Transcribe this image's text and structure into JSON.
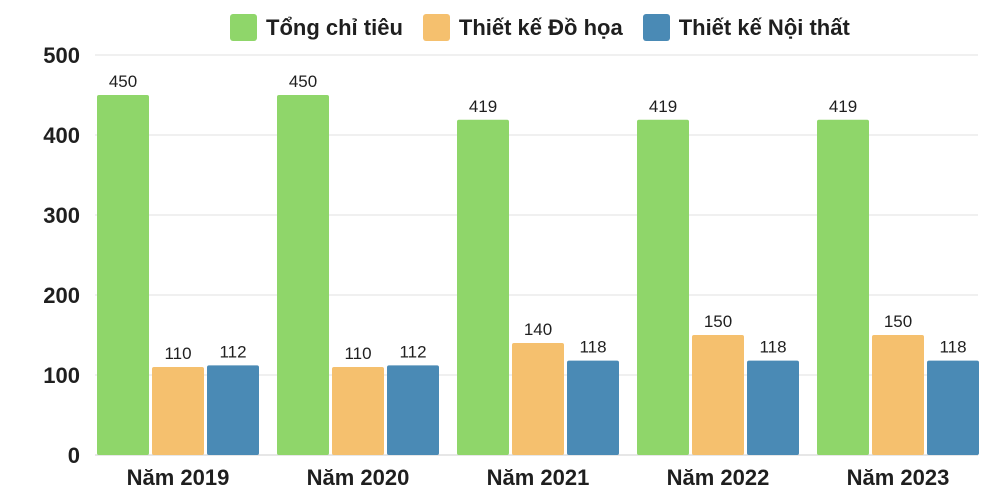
{
  "chart_data": {
    "type": "bar",
    "title": "",
    "xlabel": "",
    "ylabel": "",
    "ylim": [
      0,
      500
    ],
    "yticks": [
      0,
      100,
      200,
      300,
      400,
      500
    ],
    "grid": true,
    "legend_position": "top-center",
    "categories": [
      "Năm 2019",
      "Năm 2020",
      "Năm 2021",
      "Năm 2022",
      "Năm 2023"
    ],
    "series": [
      {
        "name": "Tổng chỉ tiêu",
        "color": "#8fd66a",
        "values": [
          450,
          450,
          419,
          419,
          419
        ]
      },
      {
        "name": "Thiết kế Đồ họa",
        "color": "#f5c06e",
        "values": [
          110,
          110,
          140,
          150,
          150
        ]
      },
      {
        "name": "Thiết kế Nội thất",
        "color": "#4a8ab5",
        "values": [
          112,
          112,
          118,
          118,
          118
        ]
      }
    ]
  }
}
